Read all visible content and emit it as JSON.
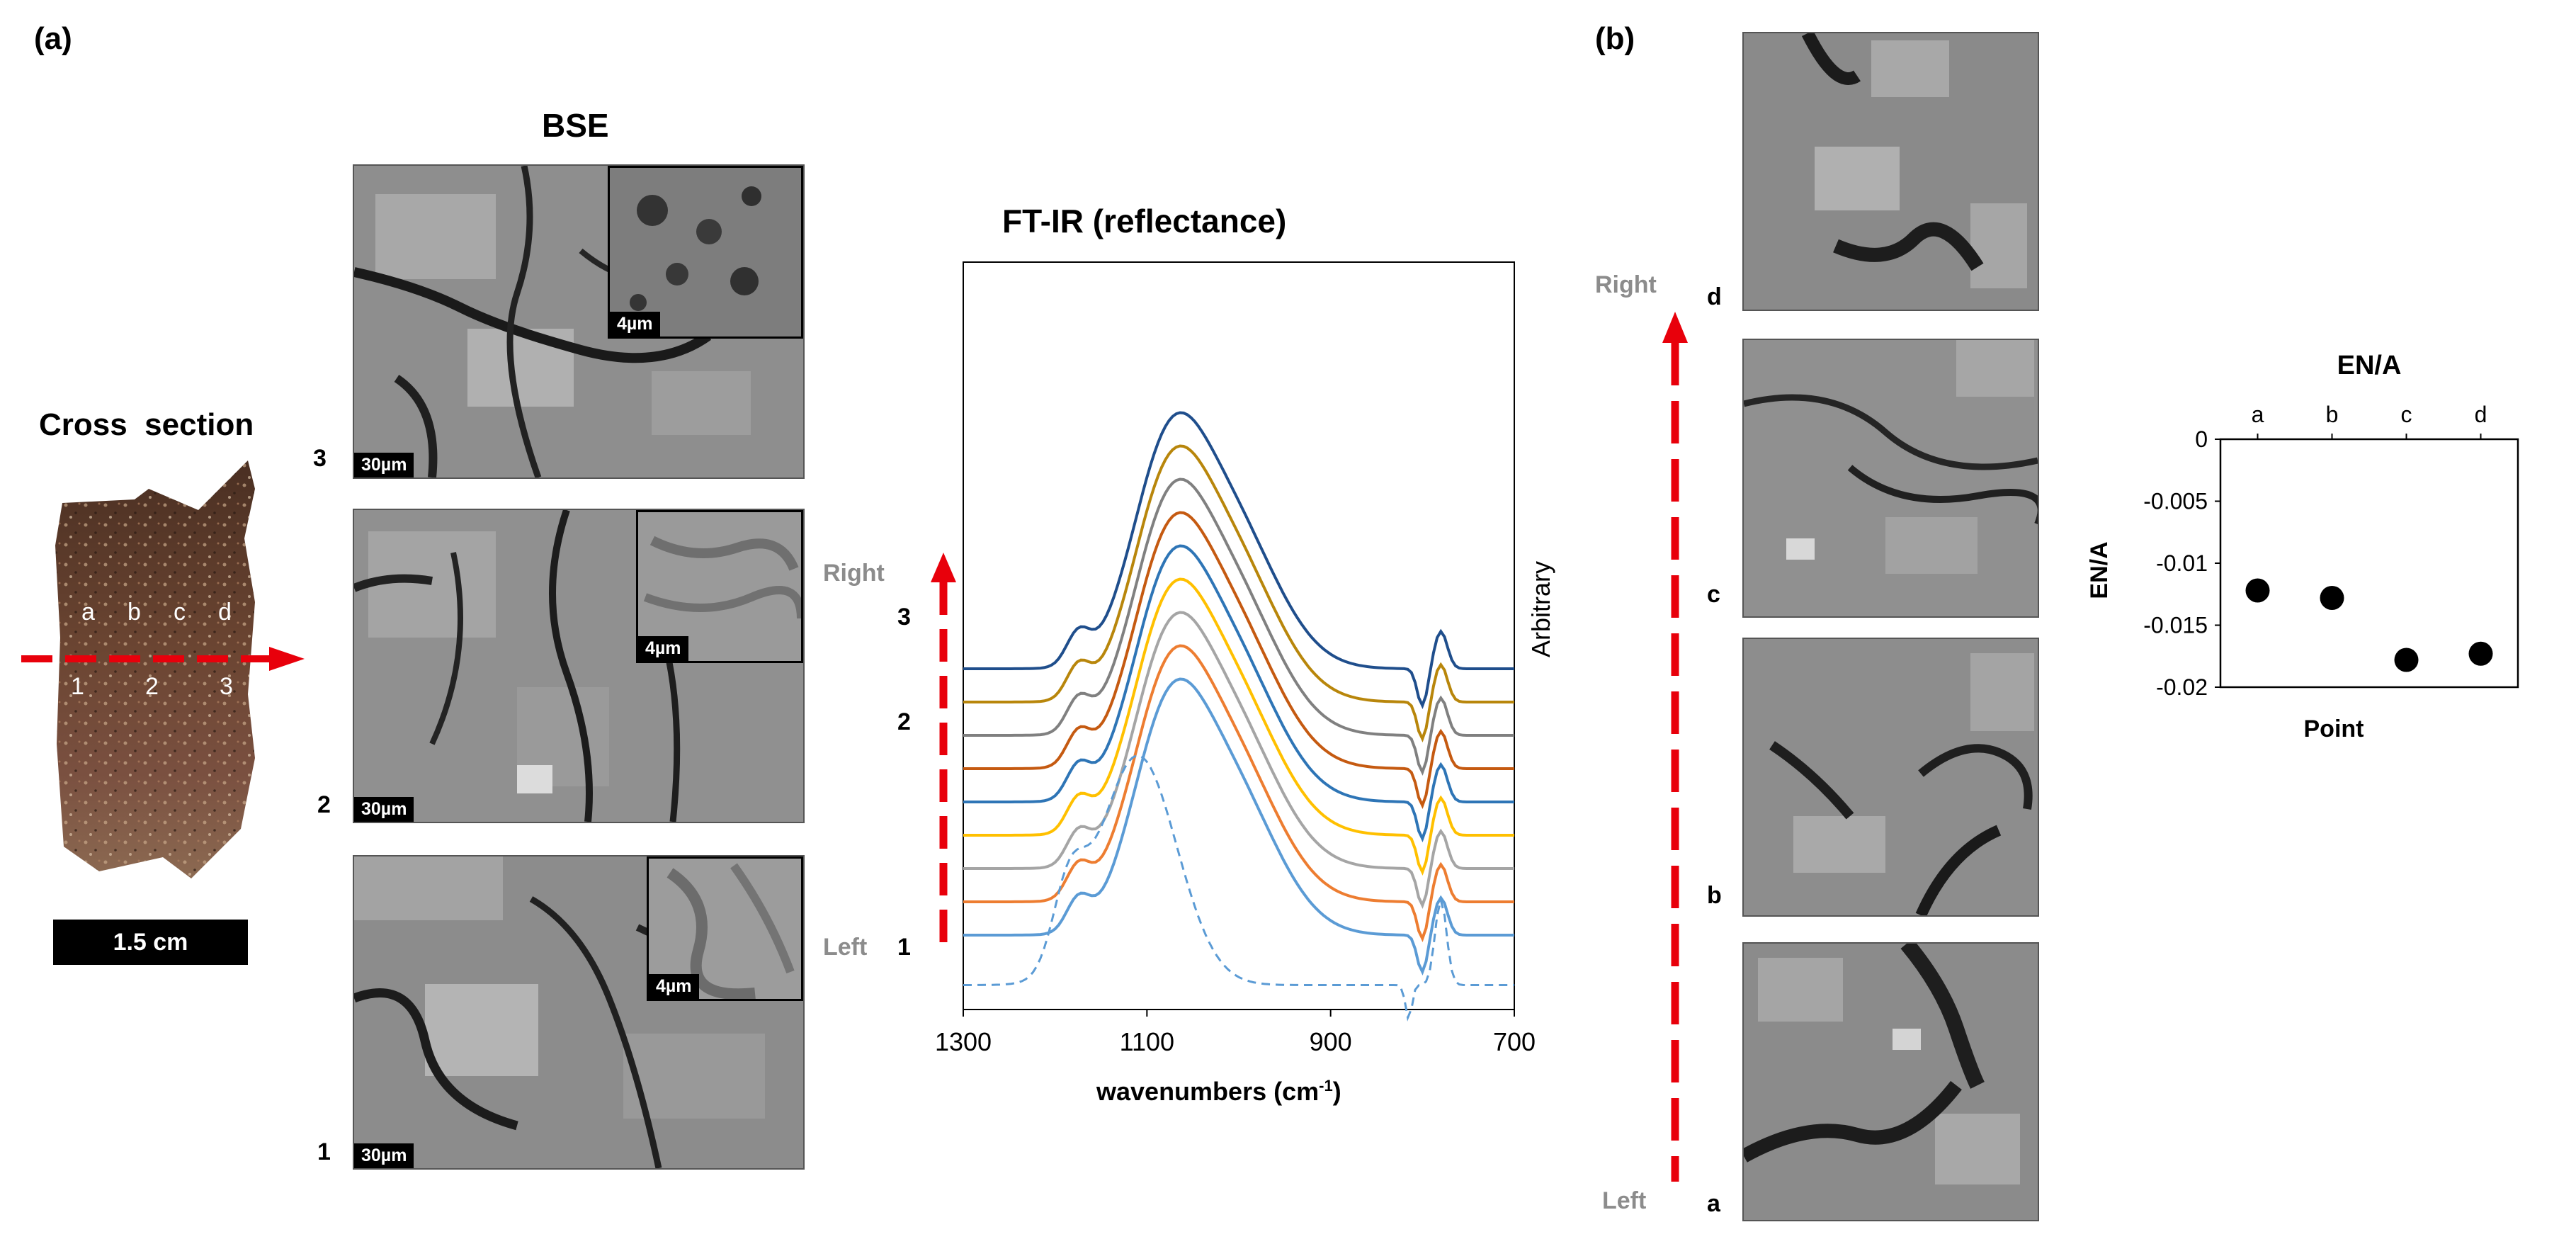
{
  "panel_a": {
    "label": "(a)",
    "cross_section": {
      "title": "Cross  section",
      "point_letters": [
        "a",
        "b",
        "c",
        "d"
      ],
      "point_numbers": [
        "1",
        "2",
        "3"
      ],
      "scale_label": "1.5 cm"
    },
    "bse": {
      "title": "BSE",
      "images": [
        {
          "number": "3",
          "scale": "30µm",
          "inset_scale": "4µm"
        },
        {
          "number": "2",
          "scale": "30µm",
          "inset_scale": "4µm"
        },
        {
          "number": "1",
          "scale": "30µm",
          "inset_scale": "4µm"
        }
      ]
    },
    "ftir": {
      "title": "FT-IR (reflectance)",
      "xlabel_main": "wavenumbers (cm",
      "xlabel_sup": "-1",
      "xlabel_end": ")",
      "ylabel": "Arbitrary",
      "x_ticks": [
        "1300",
        "1100",
        "900",
        "700"
      ],
      "arrow_top_label": "Right",
      "arrow_bottom_label": "Left",
      "arrow_numbers": [
        "3",
        "2",
        "1"
      ]
    }
  },
  "panel_b": {
    "label": "(b)",
    "arrow_top_label": "Right",
    "arrow_bottom_label": "Left",
    "image_letters": [
      "d",
      "c",
      "b",
      "a"
    ]
  },
  "chart_data": [
    {
      "type": "line",
      "title": "FT-IR (reflectance)",
      "xlabel": "wavenumbers (cm-1)",
      "ylabel": "Arbitrary",
      "xlim": [
        1300,
        700
      ],
      "x_reversed": true,
      "y_ticks_shown": false,
      "series": [
        {
          "color": "#1f4e8c",
          "offset": 8.0
        },
        {
          "color": "#b8860b",
          "offset": 7.0
        },
        {
          "color": "#808080",
          "offset": 6.0
        },
        {
          "color": "#c55a11",
          "offset": 5.0
        },
        {
          "color": "#2e75b6",
          "offset": 4.0
        },
        {
          "color": "#ffc000",
          "offset": 3.0
        },
        {
          "color": "#a5a5a5",
          "offset": 2.0
        },
        {
          "color": "#ed7d31",
          "offset": 1.0
        },
        {
          "color": "#5b9bd5",
          "offset": 0.0
        },
        {
          "color": "#5b9bd5",
          "offset": -1.5,
          "dashed": true
        }
      ]
    },
    {
      "type": "scatter",
      "title": "EN/A",
      "xlabel": "Point",
      "ylabel": "EN/A",
      "categories": [
        "a",
        "b",
        "c",
        "d"
      ],
      "values": [
        -0.0122,
        -0.0128,
        -0.0178,
        -0.0173
      ],
      "ylim": [
        -0.02,
        0
      ],
      "y_ticks": [
        "0",
        "-0.005",
        "-0.01",
        "-0.015",
        "-0.02"
      ],
      "x_axis_position": "top"
    }
  ]
}
